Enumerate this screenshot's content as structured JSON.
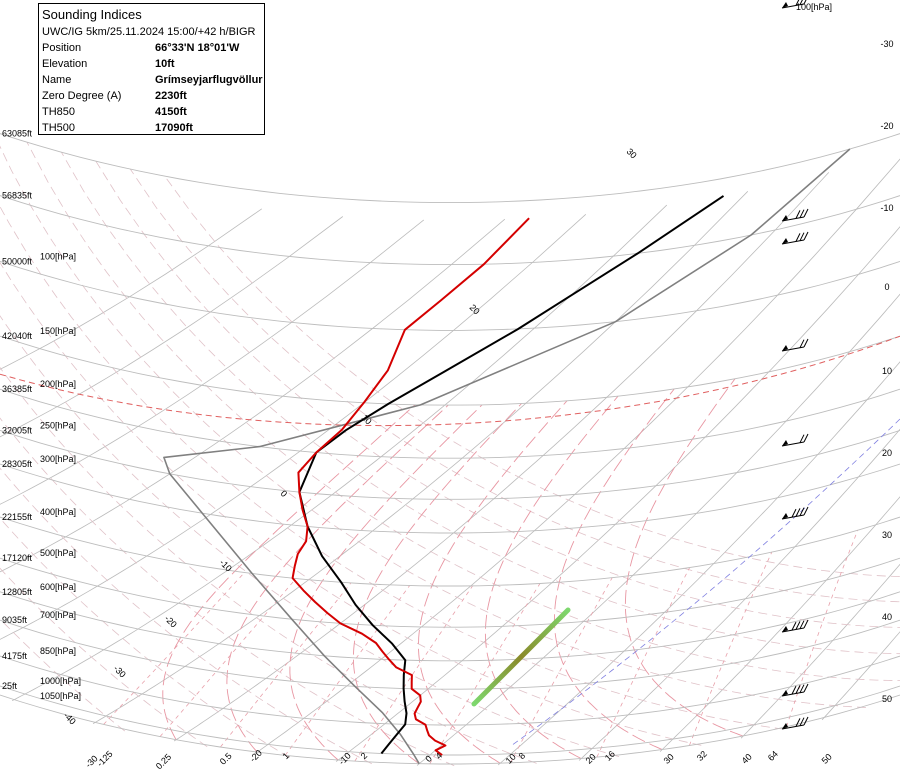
{
  "colors": {
    "temperature": "#d40000",
    "dewpoint": "#000000",
    "parcel": "#808080",
    "isotherm": "#bbbbbb",
    "isobar": "#bdbdbd",
    "dry_adiabat": "#e0c2c8",
    "moist_adiabat": "#e896a2",
    "mixing_ratio": "#e8a0aa",
    "zero_isotherm": "#e07070",
    "minus20_isotherm": "#8080e0",
    "tropopause": "#e06060",
    "lcl_band_start": "#8a8a2a",
    "lcl_band_end": "#7ed86e"
  },
  "info": {
    "title": "Sounding Indices",
    "subtitle": "UWC/IG 5km/25.11.2024 15:00/+42 h/BIGR",
    "rows": [
      {
        "key": "Position",
        "value": "66°33'N 18°01'W"
      },
      {
        "key": "Elevation",
        "value": "10ft"
      },
      {
        "key": "Name",
        "value": "Grímseyjarflugvöllur"
      },
      {
        "key": "Zero Degree (A)",
        "value": "2230ft"
      },
      {
        "key": "TH850",
        "value": "4150ft"
      },
      {
        "key": "TH500",
        "value": "17090ft"
      }
    ]
  },
  "chart_data": {
    "type": "skew-t",
    "y_axis": {
      "scale": "log-pressure",
      "levels": [
        {
          "p": 50,
          "ft": "63085ft",
          "label": "[hPa]"
        },
        {
          "p": 70,
          "ft": "56835ft",
          "label": ""
        },
        {
          "p": 100,
          "ft": "50000ft",
          "label": "100[hPa]"
        },
        {
          "p": 150,
          "ft": "42040ft",
          "label": "150[hPa]"
        },
        {
          "p": 200,
          "ft": "36385ft",
          "label": "200[hPa]"
        },
        {
          "p": 250,
          "ft": "32005ft",
          "label": "250[hPa]"
        },
        {
          "p": 300,
          "ft": "28305ft",
          "label": "300[hPa]"
        },
        {
          "p": 400,
          "ft": "22155ft",
          "label": "400[hPa]"
        },
        {
          "p": 500,
          "ft": "17120ft",
          "label": "500[hPa]"
        },
        {
          "p": 600,
          "ft": "12805ft",
          "label": "600[hPa]"
        },
        {
          "p": 700,
          "ft": "9035ft",
          "label": "700[hPa]"
        },
        {
          "p": 850,
          "ft": "4175ft",
          "label": "850[hPa]"
        },
        {
          "p": 1000,
          "ft": "25ft",
          "label": "1000[hPa]"
        },
        {
          "p": 1050,
          "ft": "",
          "label": "1050[hPa]"
        }
      ],
      "top_right_label": "100[hPa]"
    },
    "isotherm_labels_diagonal": [
      "30",
      "20",
      "10",
      "0",
      "-10",
      "-20",
      "-30",
      "-40"
    ],
    "isotherm_labels_right": [
      "-30",
      "-20",
      "-10",
      "0",
      "10",
      "20",
      "30",
      "40",
      "50"
    ],
    "bottom_labels": [
      "-30",
      "-125",
      "0.25",
      "-20",
      "0.5",
      "1",
      "-10",
      "2",
      "0",
      "4",
      "10",
      "8",
      "20",
      "16",
      "30",
      "32",
      "40",
      "64",
      "50"
    ],
    "temperature": [
      {
        "p": 1000,
        "t": 1.5
      },
      {
        "p": 975,
        "t": 0
      },
      {
        "p": 950,
        "t": 0.5
      },
      {
        "p": 925,
        "t": -1.5
      },
      {
        "p": 900,
        "t": -3
      },
      {
        "p": 875,
        "t": -4
      },
      {
        "p": 850,
        "t": -5
      },
      {
        "p": 825,
        "t": -7
      },
      {
        "p": 800,
        "t": -8
      },
      {
        "p": 775,
        "t": -8.5
      },
      {
        "p": 750,
        "t": -9
      },
      {
        "p": 725,
        "t": -10
      },
      {
        "p": 700,
        "t": -12
      },
      {
        "p": 675,
        "t": -13
      },
      {
        "p": 650,
        "t": -14
      },
      {
        "p": 625,
        "t": -17
      },
      {
        "p": 600,
        "t": -19
      },
      {
        "p": 575,
        "t": -21
      },
      {
        "p": 550,
        "t": -23
      },
      {
        "p": 525,
        "t": -26
      },
      {
        "p": 500,
        "t": -30
      },
      {
        "p": 475,
        "t": -33
      },
      {
        "p": 450,
        "t": -36
      },
      {
        "p": 425,
        "t": -39
      },
      {
        "p": 400,
        "t": -42
      },
      {
        "p": 375,
        "t": -43.5
      },
      {
        "p": 350,
        "t": -45
      },
      {
        "p": 325,
        "t": -46
      },
      {
        "p": 300,
        "t": -48
      },
      {
        "p": 275,
        "t": -51
      },
      {
        "p": 250,
        "t": -54
      },
      {
        "p": 225,
        "t": -57
      },
      {
        "p": 200,
        "t": -58
      },
      {
        "p": 175,
        "t": -58.5
      },
      {
        "p": 150,
        "t": -60
      },
      {
        "p": 125,
        "t": -62
      },
      {
        "p": 100,
        "t": -66
      },
      {
        "p": 85,
        "t": -66
      },
      {
        "p": 70,
        "t": -66
      },
      {
        "p": 55,
        "t": -67
      }
    ],
    "dewpoint": [
      {
        "p": 1000,
        "t": -6
      },
      {
        "p": 950,
        "t": -6.5
      },
      {
        "p": 900,
        "t": -7
      },
      {
        "p": 850,
        "t": -7.5
      },
      {
        "p": 800,
        "t": -9
      },
      {
        "p": 750,
        "t": -11
      },
      {
        "p": 700,
        "t": -13
      },
      {
        "p": 650,
        "t": -15
      },
      {
        "p": 600,
        "t": -17
      },
      {
        "p": 550,
        "t": -21
      },
      {
        "p": 500,
        "t": -26
      },
      {
        "p": 450,
        "t": -31
      },
      {
        "p": 400,
        "t": -36
      },
      {
        "p": 350,
        "t": -42
      },
      {
        "p": 300,
        "t": -48
      },
      {
        "p": 250,
        "t": -54
      },
      {
        "p": 200,
        "t": -58
      },
      {
        "p": 175,
        "t": -58
      },
      {
        "p": 150,
        "t": -57
      },
      {
        "p": 125,
        "t": -55
      },
      {
        "p": 100,
        "t": -52
      },
      {
        "p": 85,
        "t": -50
      },
      {
        "p": 70,
        "t": -47
      },
      {
        "p": 55,
        "t": -43
      }
    ],
    "parcel": [
      {
        "p": 1050,
        "t": 0
      },
      {
        "p": 1000,
        "t": -2
      },
      {
        "p": 900,
        "t": -6.5
      },
      {
        "p": 800,
        "t": -12
      },
      {
        "p": 700,
        "t": -19
      },
      {
        "p": 600,
        "t": -27
      },
      {
        "p": 500,
        "t": -36
      },
      {
        "p": 400,
        "t": -47
      },
      {
        "p": 300,
        "t": -61
      },
      {
        "p": 250,
        "t": -70
      },
      {
        "p": 230,
        "t": -73
      },
      {
        "p": 200,
        "t": -65
      },
      {
        "p": 150,
        "t": -53
      },
      {
        "p": 100,
        "t": -40
      },
      {
        "p": 70,
        "t": -33
      },
      {
        "p": 50,
        "t": -30
      }
    ],
    "tropopause_p": 150,
    "wind_barbs": [
      {
        "p": 50,
        "speed_kt": 30
      },
      {
        "p": 130,
        "speed_kt": 25
      },
      {
        "p": 150,
        "speed_kt": 25
      },
      {
        "p": 220,
        "speed_kt": 20
      },
      {
        "p": 320,
        "speed_kt": 15
      },
      {
        "p": 420,
        "speed_kt": 40
      },
      {
        "p": 650,
        "speed_kt": 40
      },
      {
        "p": 800,
        "speed_kt": 40
      },
      {
        "p": 900,
        "speed_kt": 25
      }
    ]
  }
}
